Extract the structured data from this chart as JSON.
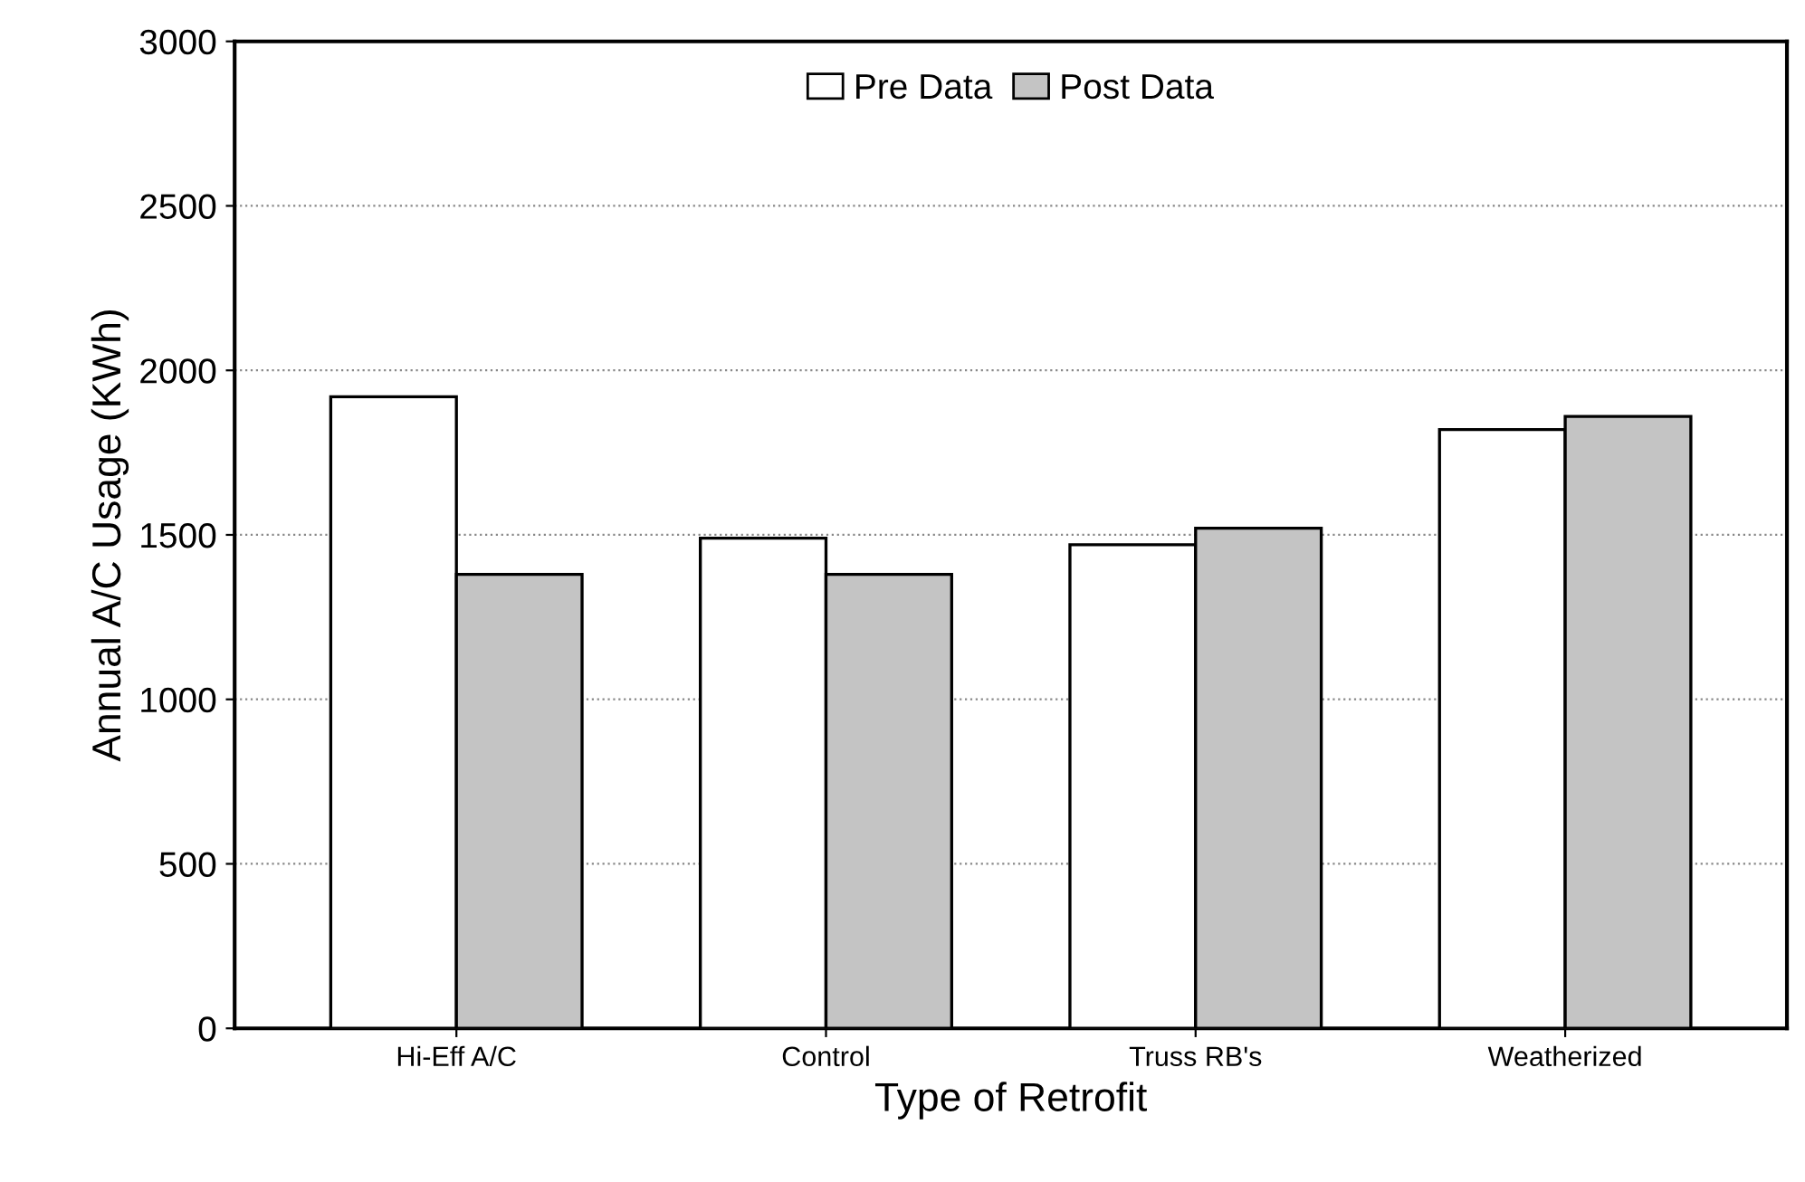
{
  "chart_data": {
    "type": "bar",
    "xlabel": "Type of Retrofit",
    "ylabel": "Annual A/C Usage (KWh)",
    "categories": [
      "Hi-Eff A/C",
      "Control",
      "Truss RB's",
      "Weatherized"
    ],
    "series": [
      {
        "name": "Pre Data",
        "color": "#ffffff",
        "values": [
          1920,
          1490,
          1470,
          1820
        ]
      },
      {
        "name": "Post Data",
        "color": "#c4c4c4",
        "values": [
          1380,
          1380,
          1520,
          1860
        ]
      }
    ],
    "ylim": [
      0,
      3000
    ],
    "yticks": [
      0,
      500,
      1000,
      1500,
      2000,
      2500,
      3000
    ],
    "grid": "y",
    "legend": "top"
  }
}
